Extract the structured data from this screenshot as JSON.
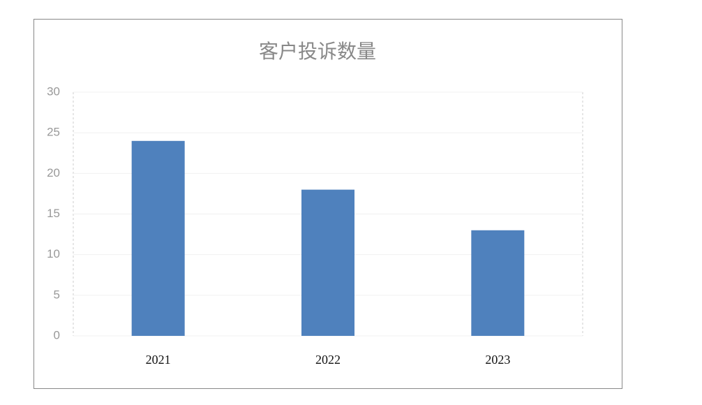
{
  "chart_data": {
    "type": "bar",
    "title": "客户投诉数量",
    "categories": [
      "2021",
      "2022",
      "2023"
    ],
    "values": [
      24,
      18,
      13
    ],
    "color": "#4f81bd",
    "ylim": [
      0,
      30
    ],
    "yticks": [
      0,
      5,
      10,
      15,
      20,
      25,
      30
    ],
    "grid": true
  }
}
